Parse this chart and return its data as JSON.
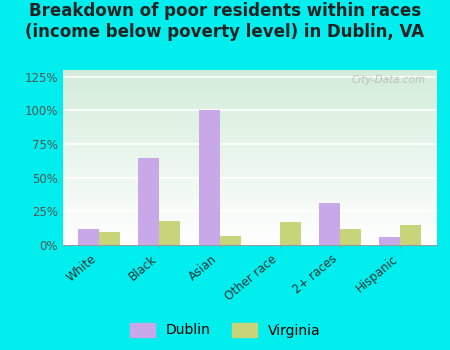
{
  "title": "Breakdown of poor residents within races\n(income below poverty level) in Dublin, VA",
  "categories": [
    "White",
    "Black",
    "Asian",
    "Other race",
    "2+ races",
    "Hispanic"
  ],
  "dublin_values": [
    12,
    65,
    100,
    0,
    31,
    6
  ],
  "virginia_values": [
    10,
    18,
    7,
    17,
    12,
    15
  ],
  "dublin_color": "#c8a8e8",
  "virginia_color": "#c8d47a",
  "ylim": [
    0,
    130
  ],
  "yticks": [
    0,
    25,
    50,
    75,
    100,
    125
  ],
  "yticklabels": [
    "0%",
    "25%",
    "50%",
    "75%",
    "100%",
    "125%"
  ],
  "outer_bg": "#00eeee",
  "bar_width": 0.35,
  "title_fontsize": 12,
  "watermark": "City-Data.com"
}
